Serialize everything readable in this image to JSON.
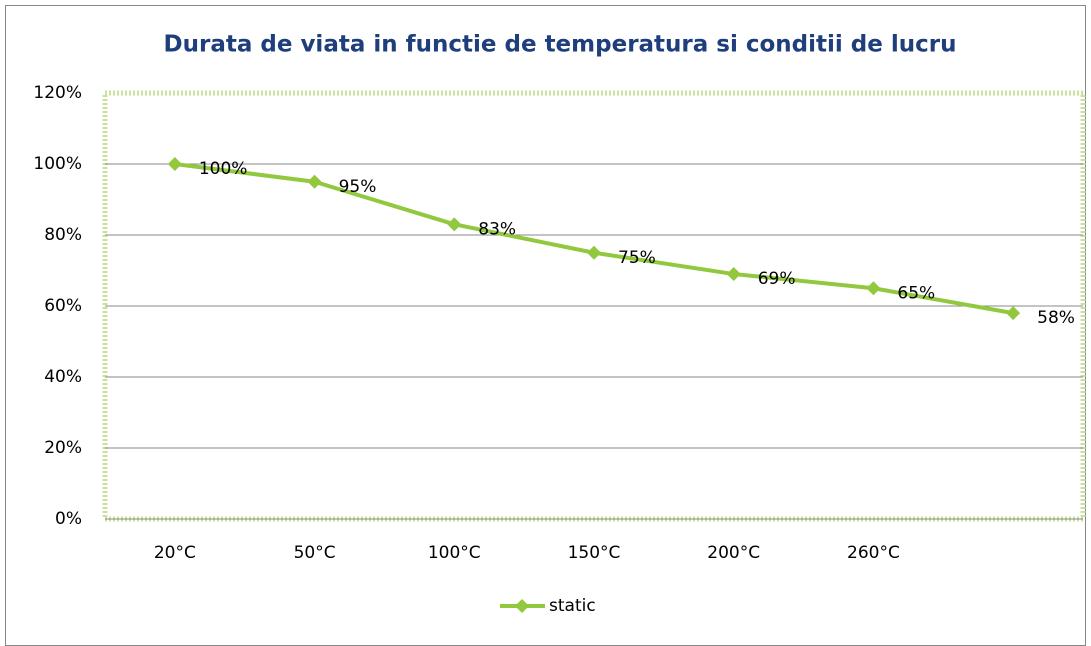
{
  "chart_data": {
    "type": "line",
    "title": "Durata de viata in functie de temperatura si conditii de lucru",
    "categories": [
      "20°C",
      "50°C",
      "100°C",
      "150°C",
      "200°C",
      "260°C",
      null
    ],
    "series": [
      {
        "name": "static",
        "color": "#92c83e",
        "values": [
          100,
          95,
          83,
          75,
          69,
          65,
          58
        ],
        "value_labels": [
          "100%",
          "95%",
          "83%",
          "75%",
          "69%",
          "65%",
          "58%"
        ]
      }
    ],
    "ylim": [
      0,
      120
    ],
    "yticks": [
      {
        "value": 0,
        "label": "0%"
      },
      {
        "value": 20,
        "label": "20%"
      },
      {
        "value": 40,
        "label": "40%"
      },
      {
        "value": 60,
        "label": "60%"
      },
      {
        "value": 80,
        "label": "80%"
      },
      {
        "value": 100,
        "label": "100%"
      },
      {
        "value": 120,
        "label": "120%"
      }
    ],
    "grid": true,
    "legend": "bottom"
  }
}
